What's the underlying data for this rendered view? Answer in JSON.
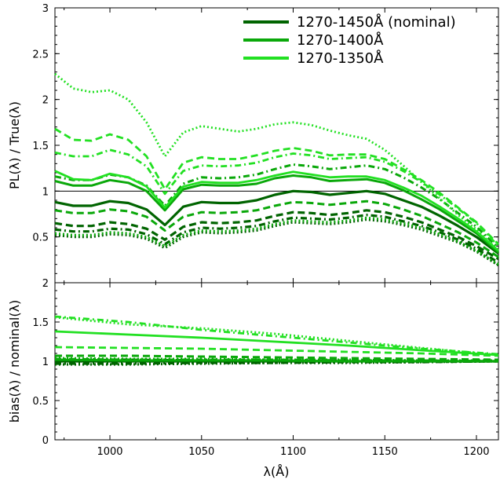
{
  "chart_data": [
    {
      "type": "line",
      "panel": "top",
      "title": "",
      "xlabel": "",
      "ylabel": "PL(λ) / True(λ)",
      "xlim": [
        970,
        1212
      ],
      "ylim": [
        0,
        3
      ],
      "xticks": [
        "1000",
        "1050",
        "1100",
        "1150",
        "1200"
      ],
      "yticks": [
        "0.5",
        "1",
        "1.5",
        "2",
        "2.5",
        "3"
      ],
      "reference_line": 1,
      "grid": false,
      "legend": {
        "placement": "top-right",
        "entries": [
          {
            "label": "1270-1450Å (nominal)",
            "color": "#006400"
          },
          {
            "label": "1270-1400Å",
            "color": "#0aa80a"
          },
          {
            "label": "1270-1350Å",
            "color": "#22e022"
          }
        ]
      },
      "x": [
        970,
        980,
        990,
        1000,
        1010,
        1020,
        1030,
        1040,
        1050,
        1060,
        1070,
        1080,
        1090,
        1100,
        1110,
        1120,
        1130,
        1140,
        1150,
        1160,
        1170,
        1180,
        1190,
        1200,
        1212
      ],
      "series": [
        {
          "group": 0,
          "style": "solid",
          "values": [
            0.88,
            0.84,
            0.84,
            0.89,
            0.87,
            0.8,
            0.63,
            0.83,
            0.88,
            0.87,
            0.87,
            0.9,
            0.96,
            1.0,
            0.99,
            0.96,
            0.98,
            1.0,
            0.97,
            0.9,
            0.83,
            0.73,
            0.62,
            0.5,
            0.32
          ]
        },
        {
          "group": 0,
          "style": "dashed",
          "values": [
            0.65,
            0.62,
            0.62,
            0.66,
            0.64,
            0.59,
            0.47,
            0.61,
            0.66,
            0.65,
            0.66,
            0.68,
            0.73,
            0.77,
            0.76,
            0.74,
            0.76,
            0.79,
            0.77,
            0.72,
            0.66,
            0.58,
            0.5,
            0.4,
            0.26
          ]
        },
        {
          "group": 0,
          "style": "dotdash",
          "values": [
            0.58,
            0.56,
            0.56,
            0.59,
            0.58,
            0.53,
            0.42,
            0.55,
            0.6,
            0.59,
            0.6,
            0.62,
            0.67,
            0.71,
            0.7,
            0.69,
            0.71,
            0.74,
            0.72,
            0.67,
            0.62,
            0.55,
            0.47,
            0.37,
            0.22
          ]
        },
        {
          "group": 0,
          "style": "dotted",
          "values": [
            0.52,
            0.5,
            0.5,
            0.53,
            0.52,
            0.48,
            0.38,
            0.5,
            0.55,
            0.54,
            0.55,
            0.57,
            0.62,
            0.66,
            0.65,
            0.64,
            0.66,
            0.69,
            0.67,
            0.63,
            0.58,
            0.51,
            0.44,
            0.34,
            0.19
          ]
        },
        {
          "group": 1,
          "style": "solid",
          "values": [
            1.11,
            1.06,
            1.06,
            1.12,
            1.09,
            1.0,
            0.79,
            1.02,
            1.07,
            1.06,
            1.06,
            1.08,
            1.14,
            1.17,
            1.15,
            1.11,
            1.12,
            1.13,
            1.09,
            1.01,
            0.91,
            0.8,
            0.67,
            0.54,
            0.33
          ]
        },
        {
          "group": 1,
          "style": "dashed",
          "values": [
            0.79,
            0.76,
            0.76,
            0.8,
            0.78,
            0.72,
            0.57,
            0.72,
            0.77,
            0.76,
            0.77,
            0.79,
            0.84,
            0.88,
            0.87,
            0.85,
            0.87,
            0.89,
            0.86,
            0.8,
            0.73,
            0.64,
            0.55,
            0.44,
            0.28
          ]
        },
        {
          "group": 1,
          "style": "dotdash",
          "values": [
            1.16,
            1.12,
            1.12,
            1.18,
            1.15,
            1.06,
            0.84,
            1.08,
            1.15,
            1.14,
            1.15,
            1.18,
            1.24,
            1.29,
            1.27,
            1.24,
            1.26,
            1.28,
            1.24,
            1.15,
            1.04,
            0.91,
            0.76,
            0.61,
            0.38
          ]
        },
        {
          "group": 1,
          "style": "dotted",
          "values": [
            0.54,
            0.52,
            0.52,
            0.55,
            0.54,
            0.5,
            0.4,
            0.52,
            0.57,
            0.56,
            0.57,
            0.59,
            0.64,
            0.68,
            0.67,
            0.66,
            0.68,
            0.71,
            0.69,
            0.65,
            0.6,
            0.53,
            0.45,
            0.35,
            0.2
          ]
        },
        {
          "group": 2,
          "style": "solid",
          "values": [
            1.22,
            1.13,
            1.12,
            1.19,
            1.15,
            1.05,
            0.82,
            1.05,
            1.1,
            1.09,
            1.09,
            1.12,
            1.17,
            1.21,
            1.18,
            1.15,
            1.16,
            1.16,
            1.12,
            1.04,
            0.95,
            0.83,
            0.7,
            0.56,
            0.35
          ]
        },
        {
          "group": 2,
          "style": "dashed",
          "values": [
            1.68,
            1.56,
            1.55,
            1.62,
            1.56,
            1.38,
            1.02,
            1.31,
            1.37,
            1.35,
            1.35,
            1.39,
            1.44,
            1.47,
            1.44,
            1.39,
            1.4,
            1.4,
            1.35,
            1.24,
            1.12,
            0.98,
            0.82,
            0.66,
            0.42
          ]
        },
        {
          "group": 2,
          "style": "dotdash",
          "values": [
            1.42,
            1.38,
            1.38,
            1.45,
            1.4,
            1.27,
            0.97,
            1.22,
            1.28,
            1.27,
            1.28,
            1.31,
            1.37,
            1.41,
            1.39,
            1.35,
            1.36,
            1.37,
            1.32,
            1.22,
            1.1,
            0.96,
            0.81,
            0.65,
            0.4
          ]
        },
        {
          "group": 2,
          "style": "dotted",
          "values": [
            2.28,
            2.12,
            2.08,
            2.1,
            2.0,
            1.75,
            1.38,
            1.64,
            1.71,
            1.68,
            1.65,
            1.68,
            1.73,
            1.75,
            1.72,
            1.66,
            1.61,
            1.57,
            1.45,
            1.28,
            1.1,
            0.92,
            0.74,
            0.58,
            0.35
          ]
        }
      ]
    },
    {
      "type": "line",
      "panel": "bottom",
      "title": "",
      "xlabel": "λ(Å)",
      "ylabel": "bias(λ) / nominal(λ)",
      "xlim": [
        970,
        1212
      ],
      "ylim": [
        0,
        2
      ],
      "xticks": [
        "1000",
        "1050",
        "1100",
        "1150",
        "1200"
      ],
      "yticks": [
        "0",
        "0.5",
        "1",
        "1.5",
        "2"
      ],
      "grid": false,
      "x": [
        970,
        1010,
        1050,
        1090,
        1130,
        1170,
        1212
      ],
      "series": [
        {
          "group": 0,
          "style": "solid",
          "values": [
            1.0,
            1.0,
            1.0,
            1.0,
            1.0,
            1.0,
            1.0
          ]
        },
        {
          "group": 0,
          "style": "dashed",
          "values": [
            1.01,
            1.02,
            1.01,
            1.01,
            1.01,
            1.0,
            1.0
          ]
        },
        {
          "group": 0,
          "style": "dotdash",
          "values": [
            0.97,
            0.97,
            0.98,
            0.98,
            0.99,
            0.99,
            1.0
          ]
        },
        {
          "group": 0,
          "style": "dotted",
          "values": [
            0.96,
            0.96,
            0.97,
            0.98,
            0.98,
            0.99,
            1.0
          ]
        },
        {
          "group": 1,
          "style": "solid",
          "values": [
            1.02,
            1.01,
            1.01,
            1.01,
            1.0,
            1.0,
            1.0
          ]
        },
        {
          "group": 1,
          "style": "dashed",
          "values": [
            1.07,
            1.07,
            1.06,
            1.05,
            1.04,
            1.03,
            1.02
          ]
        },
        {
          "group": 1,
          "style": "dotdash",
          "values": [
            1.03,
            1.02,
            1.02,
            1.02,
            1.01,
            1.01,
            1.0
          ]
        },
        {
          "group": 1,
          "style": "dotted",
          "values": [
            1.04,
            1.03,
            1.03,
            1.02,
            1.02,
            1.01,
            1.01
          ]
        },
        {
          "group": 2,
          "style": "solid",
          "values": [
            1.38,
            1.34,
            1.3,
            1.25,
            1.2,
            1.14,
            1.08
          ]
        },
        {
          "group": 2,
          "style": "dashed",
          "values": [
            1.18,
            1.17,
            1.16,
            1.14,
            1.12,
            1.1,
            1.07
          ]
        },
        {
          "group": 2,
          "style": "dotdash",
          "values": [
            1.57,
            1.5,
            1.4,
            1.32,
            1.24,
            1.16,
            1.09
          ]
        },
        {
          "group": 2,
          "style": "dotted",
          "values": [
            1.56,
            1.47,
            1.42,
            1.35,
            1.26,
            1.17,
            1.08
          ]
        }
      ]
    }
  ]
}
